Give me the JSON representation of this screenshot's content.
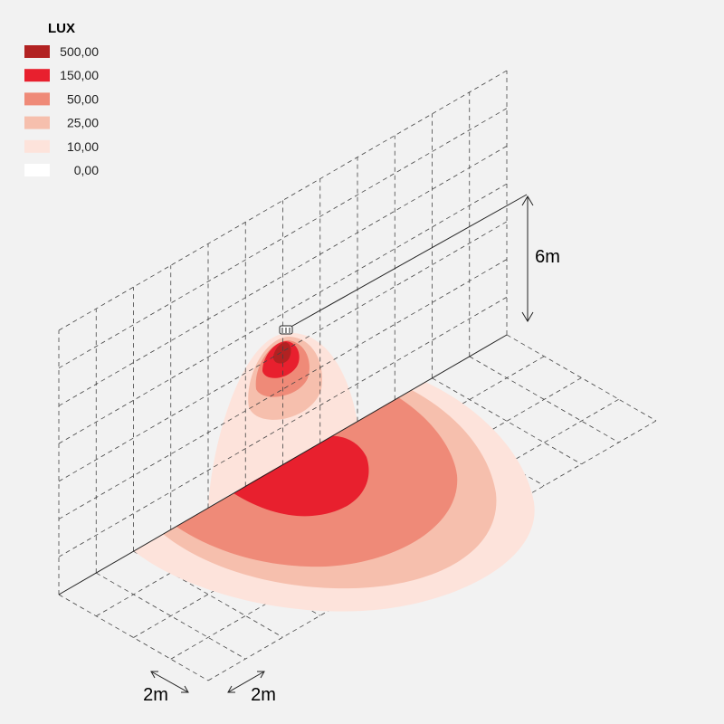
{
  "legend": {
    "title": "LUX",
    "entries": [
      {
        "label": "500,00",
        "color": "#b22222"
      },
      {
        "label": "150,00",
        "color": "#e8202e"
      },
      {
        "label": "50,00",
        "color": "#ef8a78"
      },
      {
        "label": "25,00",
        "color": "#f6bfad"
      },
      {
        "label": "10,00",
        "color": "#fde3db"
      },
      {
        "label": "0,00",
        "color": "#ffffff"
      }
    ]
  },
  "dimensions": {
    "height": "6m",
    "grid_left": "2m",
    "grid_right": "2m"
  }
}
